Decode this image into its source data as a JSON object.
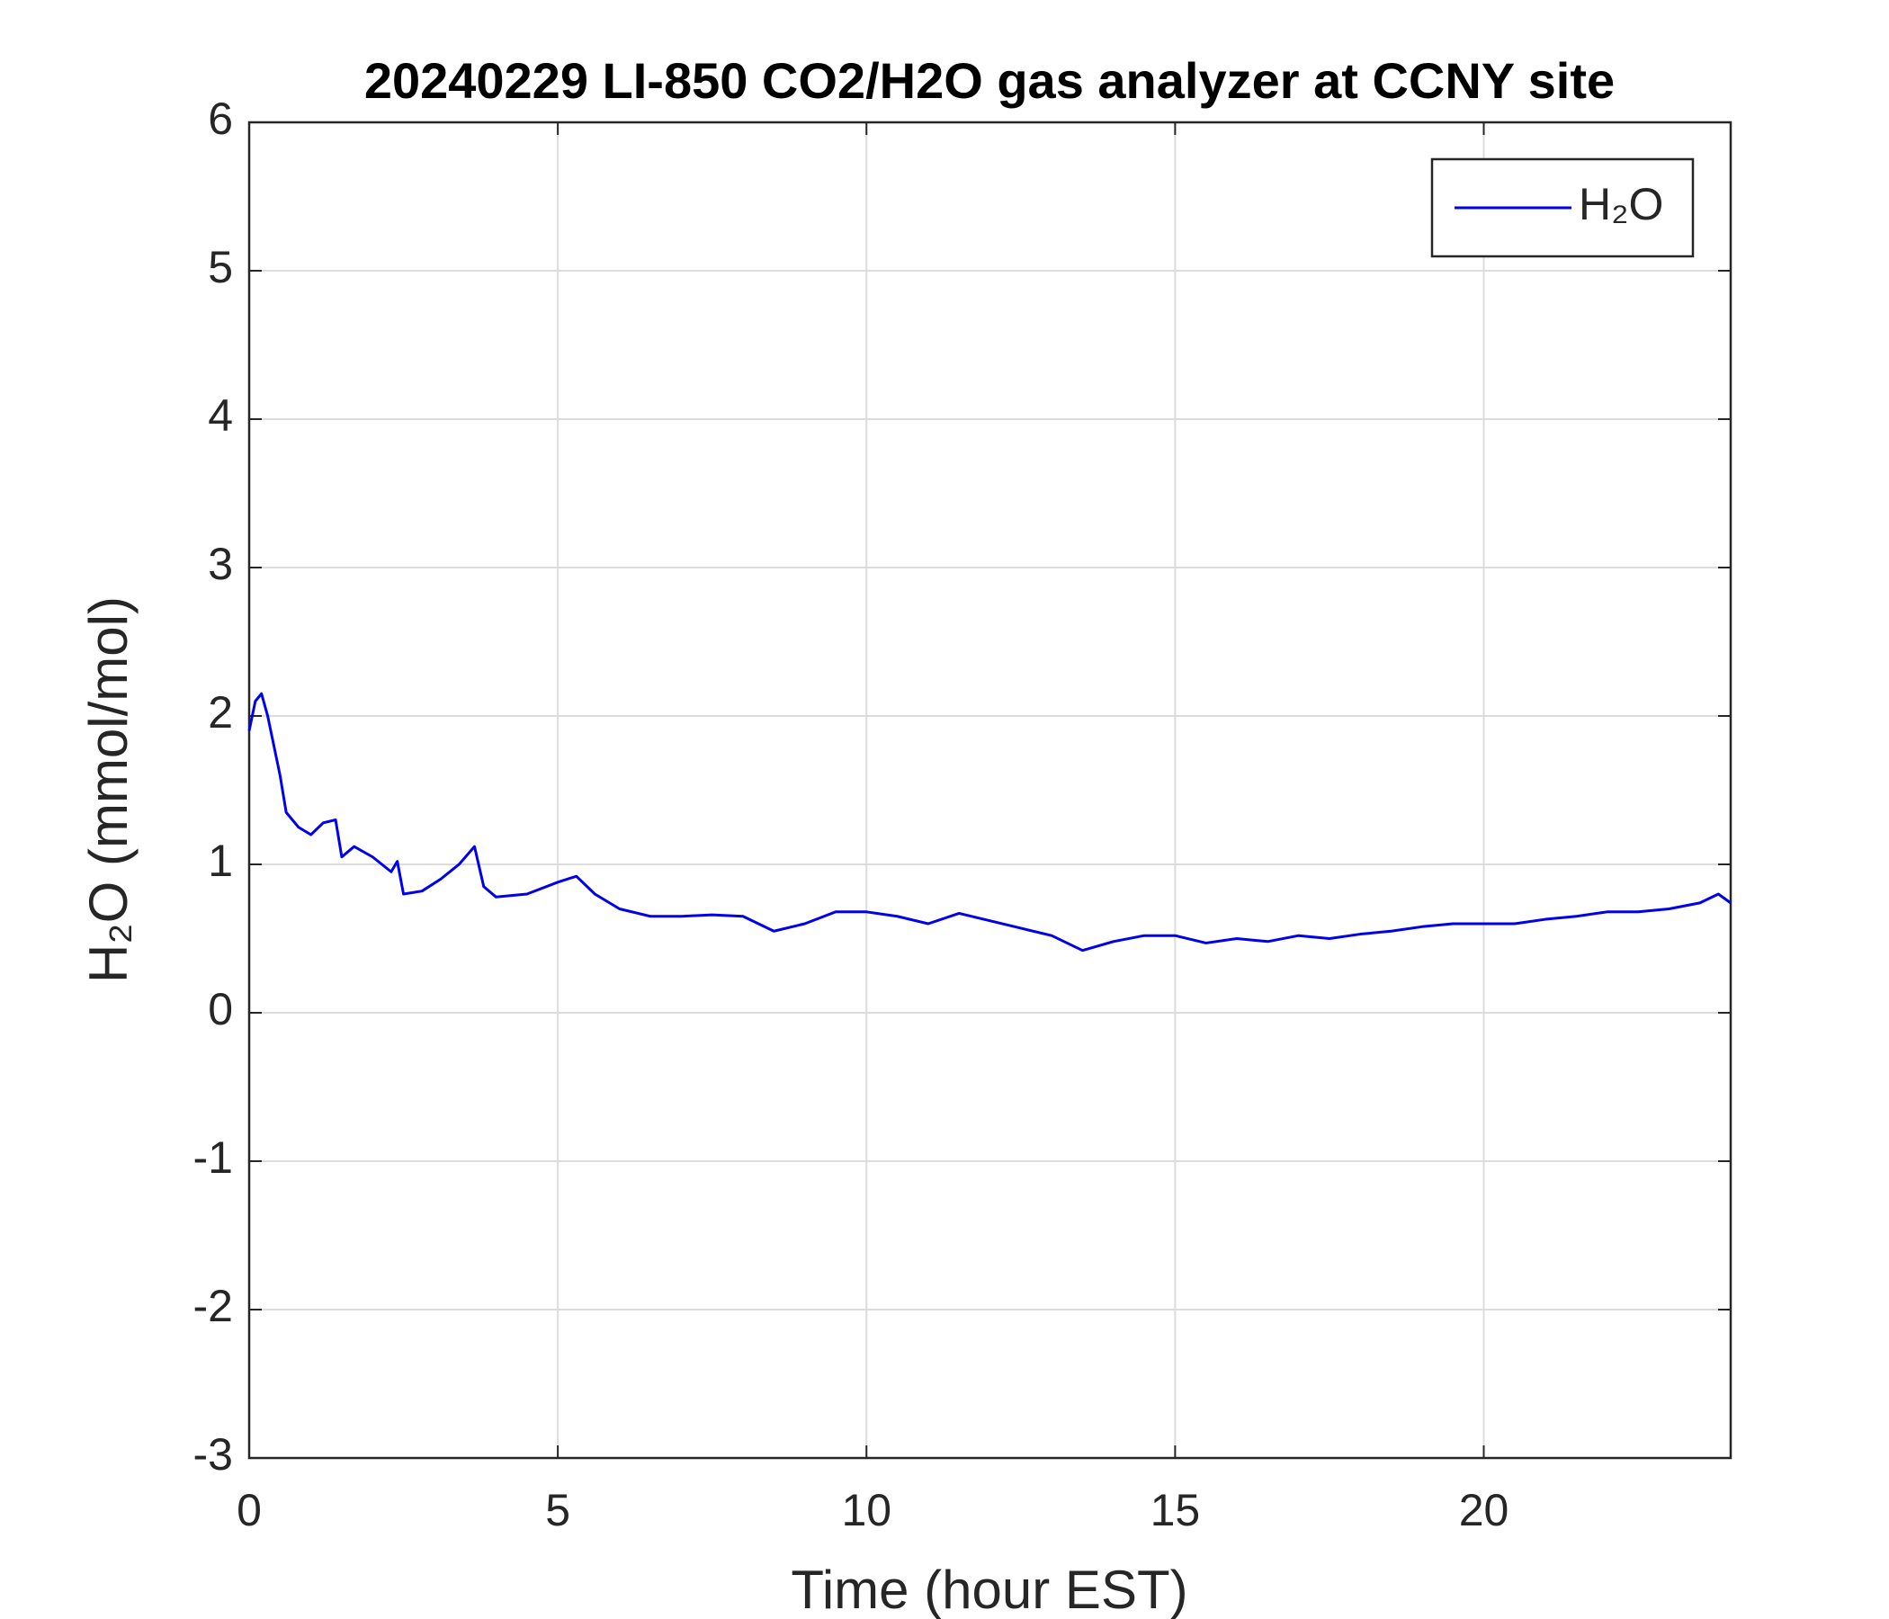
{
  "chart_data": {
    "type": "line",
    "title": "20240229 LI-850 CO2/H2O gas analyzer at CCNY site",
    "x_label": "Time (hour EST)",
    "y_label": "H₂O (mmol/mol)",
    "x": [
      0,
      0.1,
      0.2,
      0.3,
      0.4,
      0.5,
      0.6,
      0.8,
      1.0,
      1.2,
      1.4,
      1.5,
      1.7,
      2.0,
      2.3,
      2.4,
      2.5,
      2.8,
      3.1,
      3.4,
      3.65,
      3.8,
      4.0,
      4.5,
      5.0,
      5.3,
      5.6,
      6.0,
      6.5,
      7.0,
      7.5,
      8.0,
      8.5,
      9.0,
      9.5,
      10.0,
      10.5,
      11.0,
      11.5,
      12.0,
      12.5,
      13.0,
      13.5,
      14.0,
      14.5,
      15.0,
      15.5,
      16.0,
      16.5,
      17.0,
      17.5,
      18.0,
      18.5,
      19.0,
      19.5,
      20.0,
      20.5,
      21.0,
      21.5,
      22.0,
      22.5,
      23.0,
      23.5,
      23.8,
      24.0
    ],
    "series": [
      {
        "name": "H₂O",
        "color": "#0000ee",
        "values": [
          1.9,
          2.1,
          2.15,
          2.0,
          1.8,
          1.6,
          1.35,
          1.25,
          1.2,
          1.28,
          1.3,
          1.05,
          1.12,
          1.05,
          0.95,
          1.02,
          0.8,
          0.82,
          0.9,
          1.0,
          1.12,
          0.85,
          0.78,
          0.8,
          0.88,
          0.92,
          0.8,
          0.7,
          0.65,
          0.65,
          0.66,
          0.65,
          0.55,
          0.6,
          0.68,
          0.68,
          0.65,
          0.6,
          0.67,
          0.62,
          0.57,
          0.52,
          0.42,
          0.48,
          0.52,
          0.52,
          0.47,
          0.5,
          0.48,
          0.52,
          0.5,
          0.53,
          0.55,
          0.58,
          0.6,
          0.6,
          0.6,
          0.63,
          0.65,
          0.68,
          0.68,
          0.7,
          0.74,
          0.8,
          0.74
        ]
      }
    ],
    "xlim": [
      0,
      24
    ],
    "ylim": [
      -3,
      6
    ],
    "xticks": [
      0,
      5,
      10,
      15,
      20
    ],
    "yticks": [
      -3,
      -2,
      -1,
      0,
      1,
      2,
      3,
      4,
      5,
      6
    ],
    "grid": true,
    "legend": "top-right"
  }
}
